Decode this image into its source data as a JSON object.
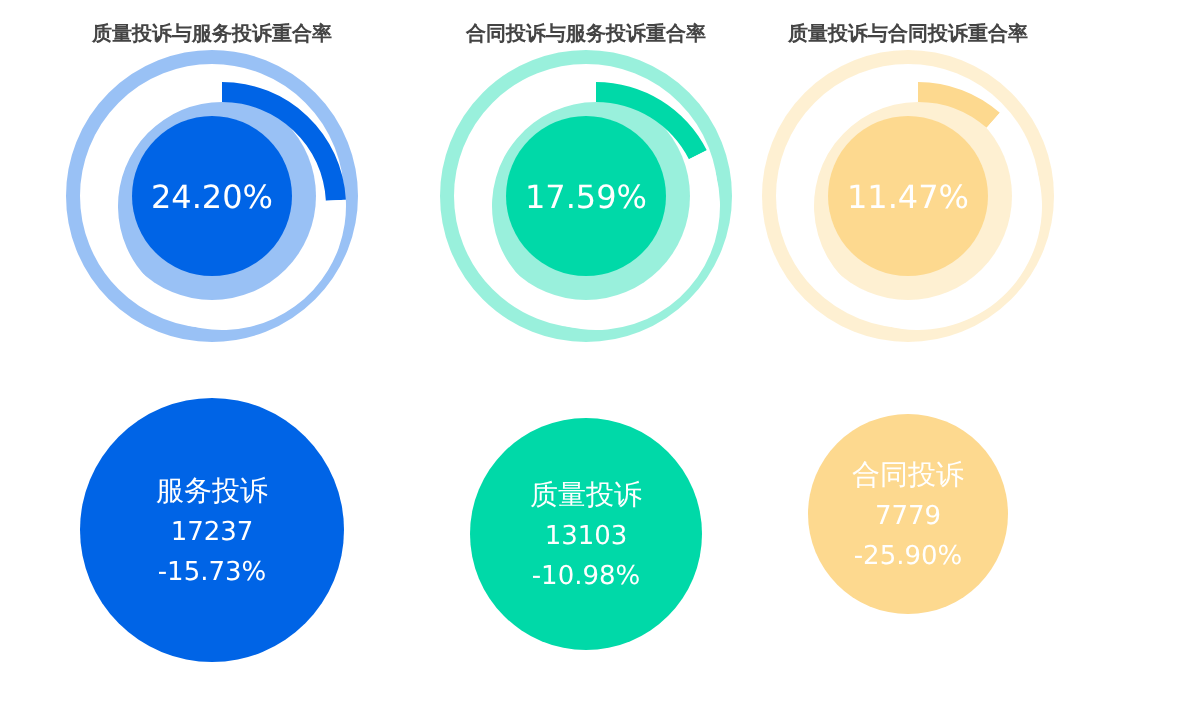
{
  "chart_data": [
    {
      "type": "donut",
      "title": "质量投诉与服务投诉重合率",
      "categories": [
        null,
        null
      ],
      "values": [
        24.2,
        75.8
      ],
      "colors": [
        "#0064e6",
        "#ffffff"
      ],
      "annotations": [
        "24.20%"
      ]
    },
    {
      "type": "donut",
      "title": "合同投诉与服务投诉重合率",
      "categories": [
        null,
        null
      ],
      "values": [
        17.59,
        82.41
      ],
      "colors": [
        "#00d9a8",
        "#ffffff"
      ],
      "annotations": [
        "17.59%"
      ]
    },
    {
      "type": "donut",
      "title": "质量投诉与合同投诉重合率",
      "categories": [
        null,
        null
      ],
      "values": [
        11.47,
        88.53
      ],
      "colors": [
        "#fdd98f",
        "#ffffff"
      ],
      "annotations": [
        "11.47%"
      ]
    },
    {
      "type": "other",
      "color": "#0064e6",
      "annotations": [
        "服务投诉",
        "17237",
        "-15.73%"
      ]
    },
    {
      "type": "other",
      "color": "#00d9a8",
      "annotations": [
        "质量投诉",
        "13103",
        "-10.98%"
      ]
    },
    {
      "type": "other",
      "color": "#fdd98f",
      "annotations": [
        "合同投诉",
        "7779",
        "-25.90%"
      ]
    }
  ]
}
